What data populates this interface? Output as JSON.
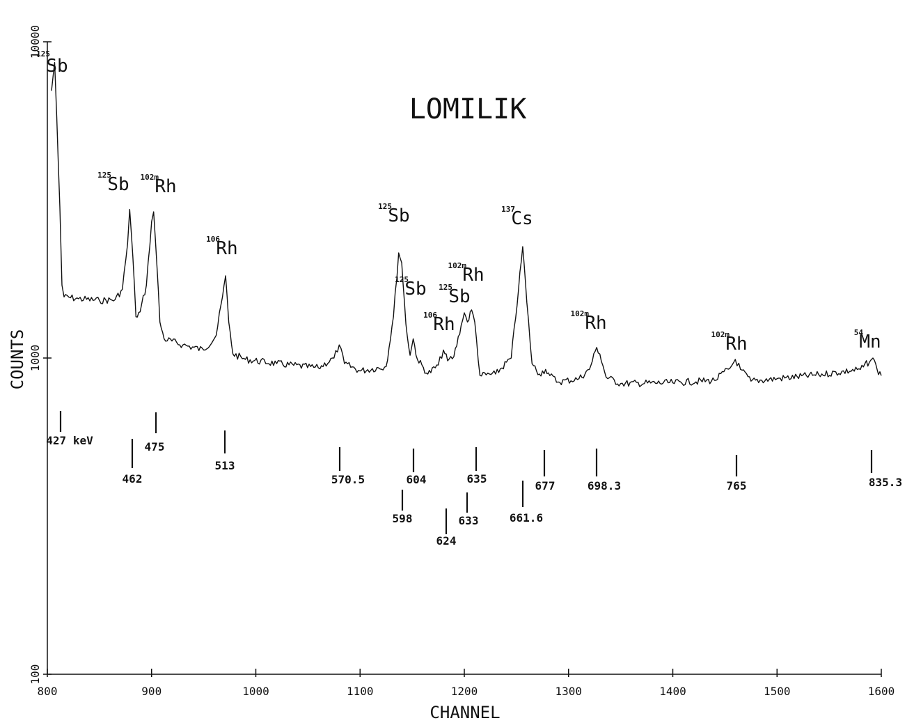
{
  "chart_data": {
    "type": "line",
    "title": "LOMILIK",
    "xlabel": "CHANNEL",
    "ylabel": "COUNTS",
    "xlim": [
      800,
      1600
    ],
    "ylim": [
      100,
      10000
    ],
    "y_scale": "log",
    "x_ticks": [
      "800",
      "900",
      "1000",
      "1100",
      "1200",
      "1300",
      "1400",
      "1500",
      "1600"
    ],
    "y_ticks": [
      "100",
      "1000",
      "10000"
    ],
    "grid": false,
    "series": [
      {
        "points": [
          [
            804,
            7000
          ],
          [
            807,
            8600
          ],
          [
            809,
            5800
          ],
          [
            812,
            3000
          ],
          [
            814,
            1700
          ],
          [
            816,
            1560
          ],
          [
            830,
            1540
          ],
          [
            850,
            1520
          ],
          [
            865,
            1530
          ],
          [
            872,
            1650
          ],
          [
            877,
            2300
          ],
          [
            879,
            2950
          ],
          [
            882,
            2100
          ],
          [
            885,
            1350
          ],
          [
            889,
            1400
          ],
          [
            895,
            1700
          ],
          [
            900,
            2700
          ],
          [
            902,
            2900
          ],
          [
            905,
            2000
          ],
          [
            908,
            1300
          ],
          [
            912,
            1150
          ],
          [
            930,
            1100
          ],
          [
            950,
            1060
          ],
          [
            962,
            1180
          ],
          [
            968,
            1560
          ],
          [
            971,
            1820
          ],
          [
            974,
            1300
          ],
          [
            978,
            1030
          ],
          [
            990,
            990
          ],
          [
            1020,
            960
          ],
          [
            1060,
            930
          ],
          [
            1075,
            1000
          ],
          [
            1080,
            1100
          ],
          [
            1085,
            960
          ],
          [
            1100,
            910
          ],
          [
            1125,
            940
          ],
          [
            1132,
            1350
          ],
          [
            1137,
            2150
          ],
          [
            1140,
            2000
          ],
          [
            1144,
            1280
          ],
          [
            1148,
            1020
          ],
          [
            1151,
            1150
          ],
          [
            1155,
            990
          ],
          [
            1165,
            890
          ],
          [
            1175,
            950
          ],
          [
            1180,
            1060
          ],
          [
            1184,
            980
          ],
          [
            1190,
            1010
          ],
          [
            1197,
            1270
          ],
          [
            1200,
            1390
          ],
          [
            1203,
            1300
          ],
          [
            1207,
            1420
          ],
          [
            1210,
            1300
          ],
          [
            1215,
            880
          ],
          [
            1230,
            890
          ],
          [
            1245,
            1000
          ],
          [
            1252,
            1650
          ],
          [
            1256,
            2250
          ],
          [
            1260,
            1500
          ],
          [
            1265,
            960
          ],
          [
            1272,
            890
          ],
          [
            1278,
            920
          ],
          [
            1282,
            880
          ],
          [
            1290,
            840
          ],
          [
            1310,
            860
          ],
          [
            1320,
            920
          ],
          [
            1327,
            1080
          ],
          [
            1330,
            1030
          ],
          [
            1336,
            870
          ],
          [
            1350,
            830
          ],
          [
            1400,
            835
          ],
          [
            1440,
            850
          ],
          [
            1455,
            930
          ],
          [
            1460,
            990
          ],
          [
            1465,
            920
          ],
          [
            1475,
            845
          ],
          [
            1500,
            860
          ],
          [
            1540,
            885
          ],
          [
            1580,
            920
          ],
          [
            1590,
            985
          ],
          [
            1592,
            1000
          ],
          [
            1596,
            920
          ],
          [
            1600,
            880
          ]
        ]
      }
    ],
    "peaks": [
      {
        "mass": "125",
        "element": "Sb",
        "channel": 808,
        "energy": "427 keV"
      },
      {
        "mass": "125",
        "element": "Sb",
        "channel": 879,
        "energy": "462"
      },
      {
        "mass": "102m",
        "element": "Rh",
        "channel": 902,
        "energy": "475"
      },
      {
        "mass": "106",
        "element": "Rh",
        "channel": 971,
        "energy": "513"
      },
      {
        "mass": "",
        "element": "",
        "channel": 1080,
        "energy": "570.5"
      },
      {
        "mass": "125",
        "element": "Sb",
        "channel": 1140,
        "energy": "598"
      },
      {
        "mass": "125",
        "element": "Sb",
        "channel": 1151,
        "energy": "604"
      },
      {
        "mass": "106",
        "element": "Rh",
        "channel": 1182,
        "energy": "624"
      },
      {
        "mass": "125",
        "element": "Sb",
        "channel": 1200,
        "energy": "633"
      },
      {
        "mass": "102m",
        "element": "Rh",
        "channel": 1207,
        "energy": "635"
      },
      {
        "mass": "137",
        "element": "Cs",
        "channel": 1256,
        "energy": "661.6"
      },
      {
        "mass": "",
        "element": "",
        "channel": 1277,
        "energy": "677"
      },
      {
        "mass": "102m",
        "element": "Rh",
        "channel": 1327,
        "energy": "698.3"
      },
      {
        "mass": "102m",
        "element": "Rh",
        "channel": 1460,
        "energy": "765"
      },
      {
        "mass": "54",
        "element": "Mn",
        "channel": 1592,
        "energy": "835.3"
      }
    ]
  }
}
